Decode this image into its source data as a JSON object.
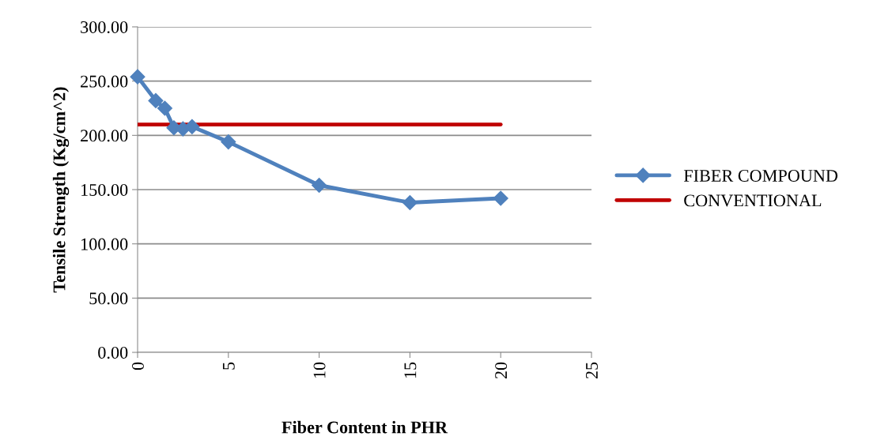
{
  "chart_data": {
    "type": "line",
    "xlabel": "Fiber Content in PHR",
    "ylabel": "Tensile Strength (Kg/cm^2)",
    "xlim": [
      0,
      25
    ],
    "xticks": [
      0,
      5,
      10,
      15,
      20,
      25
    ],
    "ylim": [
      0,
      300
    ],
    "yticks": [
      {
        "value": 0,
        "label": "0.00"
      },
      {
        "value": 50,
        "label": "50.00"
      },
      {
        "value": 100,
        "label": "100.00"
      },
      {
        "value": 150,
        "label": "150.00"
      },
      {
        "value": 200,
        "label": "200.00"
      },
      {
        "value": 250,
        "label": "250.00"
      },
      {
        "value": 300,
        "label": "300.00"
      }
    ],
    "grid": "y",
    "legend": "right",
    "series": [
      {
        "name": "FIBER COMPOUND",
        "color": "#4f81bd",
        "marker": "diamond",
        "x": [
          0,
          1,
          1.5,
          2,
          2.5,
          3,
          5,
          10,
          15,
          20
        ],
        "values": [
          254,
          232,
          225,
          207,
          206,
          208,
          194,
          154,
          138,
          142
        ]
      },
      {
        "name": "CONVENTIONAL",
        "color": "#c00000",
        "marker": "none",
        "x": [
          0,
          20
        ],
        "values": [
          210,
          210
        ]
      }
    ]
  }
}
